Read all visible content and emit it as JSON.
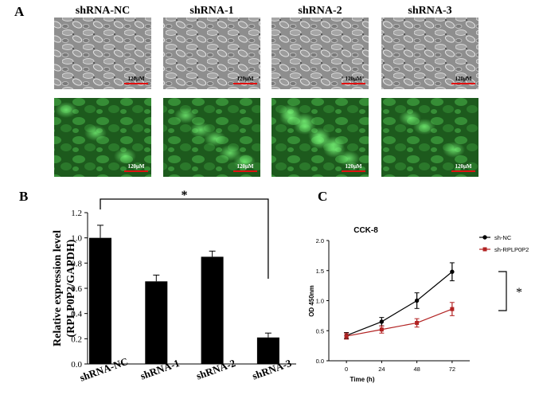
{
  "panels": [
    "A",
    "B",
    "C"
  ],
  "images": {
    "columns": [
      "shRNA-NC",
      "shRNA-1",
      "shRNA-2",
      "shRNA-3"
    ],
    "scale_bar": "120μM"
  },
  "chart_data": [
    {
      "type": "bar",
      "ylabel": [
        "Relative expression level",
        "(RPLP0P2/GAPDH)"
      ],
      "categories": [
        "shRNA-NC",
        "shRNA-1",
        "shRNA-2",
        "shRNA-3"
      ],
      "values": [
        1.0,
        0.655,
        0.85,
        0.21
      ],
      "errors": [
        0.1,
        0.05,
        0.045,
        0.035
      ],
      "color": "#000000",
      "ylim": [
        0,
        1.2
      ],
      "yticks": [
        {
          "value": 0,
          "label": "0.0"
        },
        {
          "value": 0.2,
          "label": "0.2"
        },
        {
          "value": 0.4,
          "label": "0.4"
        },
        {
          "value": 0.6,
          "label": "0.6"
        },
        {
          "value": 0.8,
          "label": "0.8"
        },
        {
          "value": 1.0,
          "label": "1.0"
        },
        {
          "value": 1.2,
          "label": "1.2"
        }
      ],
      "annotation": "*"
    },
    {
      "type": "line",
      "title": "CCK-8",
      "xlabel": "Time (h)",
      "ylabel": "OD 450nm",
      "x": [
        0,
        24,
        48,
        72
      ],
      "xlim": [
        -12,
        84
      ],
      "xticks": [
        0,
        24,
        48,
        72
      ],
      "ylim": [
        0,
        2.0
      ],
      "yticks": [
        {
          "value": 0,
          "label": "0.0"
        },
        {
          "value": 0.5,
          "label": "0.5"
        },
        {
          "value": 1.0,
          "label": "1.0"
        },
        {
          "value": 1.5,
          "label": "1.5"
        },
        {
          "value": 2.0,
          "label": "2.0"
        }
      ],
      "series": [
        {
          "name": "sh-NC",
          "color": "#000000",
          "marker": "circle",
          "values": [
            0.42,
            0.65,
            1.0,
            1.48
          ],
          "errors": [
            0.05,
            0.07,
            0.13,
            0.15
          ]
        },
        {
          "name": "sh-RPLP0P2",
          "color": "#b22222",
          "marker": "square",
          "values": [
            0.41,
            0.52,
            0.63,
            0.86
          ],
          "errors": [
            0.05,
            0.06,
            0.07,
            0.11
          ]
        }
      ],
      "legend": "upper right",
      "annotation": "*"
    }
  ]
}
